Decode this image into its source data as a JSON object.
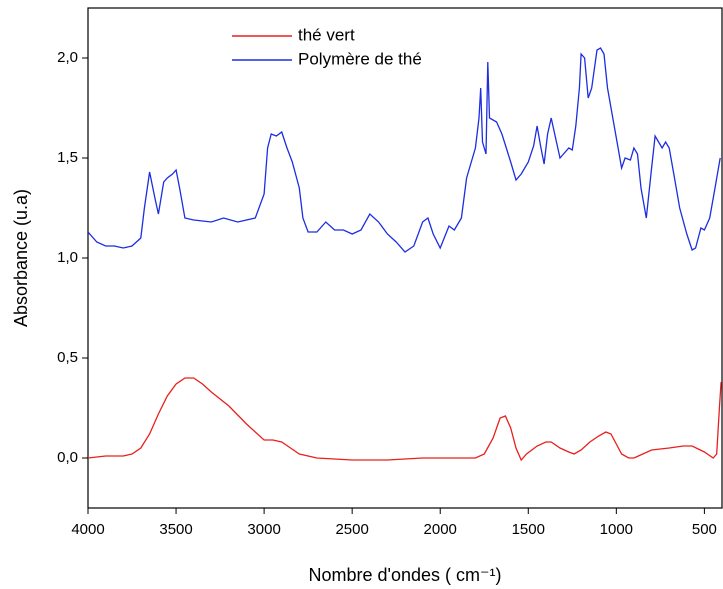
{
  "chart_data": {
    "type": "line",
    "x_label": "Nombre d'ondes ( cm⁻¹)",
    "y_label": "Absorbance (u.a)",
    "xlim": [
      4000,
      400
    ],
    "xticks": [
      4000,
      3500,
      3000,
      2500,
      2000,
      1500,
      1000,
      500
    ],
    "ylim": [
      -0.25,
      2.25
    ],
    "yticks": [
      {
        "value": 0.0,
        "label": "0,0"
      },
      {
        "value": 0.5,
        "label": "0,5"
      },
      {
        "value": 1.0,
        "label": "1,0"
      },
      {
        "value": 1.5,
        "label": "1,5"
      },
      {
        "value": 2.0,
        "label": "2,0"
      }
    ],
    "legend": "upper left",
    "series": [
      {
        "name": "thé vert",
        "color": "#e8201c",
        "x": [
          4000,
          3900,
          3800,
          3750,
          3700,
          3650,
          3600,
          3550,
          3500,
          3450,
          3400,
          3350,
          3300,
          3200,
          3100,
          3000,
          2950,
          2900,
          2850,
          2800,
          2700,
          2500,
          2300,
          2100,
          1900,
          1800,
          1750,
          1700,
          1660,
          1630,
          1600,
          1570,
          1540,
          1510,
          1450,
          1400,
          1370,
          1320,
          1270,
          1240,
          1200,
          1150,
          1100,
          1060,
          1030,
          1000,
          970,
          930,
          900,
          850,
          800,
          700,
          620,
          570,
          500,
          450,
          430,
          415,
          405
        ],
        "values": [
          0.0,
          0.01,
          0.01,
          0.02,
          0.05,
          0.12,
          0.22,
          0.31,
          0.37,
          0.4,
          0.4,
          0.37,
          0.33,
          0.26,
          0.17,
          0.09,
          0.09,
          0.08,
          0.05,
          0.02,
          0.0,
          -0.01,
          -0.01,
          0.0,
          0.0,
          0.0,
          0.02,
          0.1,
          0.2,
          0.21,
          0.15,
          0.05,
          -0.01,
          0.02,
          0.06,
          0.08,
          0.08,
          0.05,
          0.03,
          0.02,
          0.04,
          0.08,
          0.11,
          0.13,
          0.12,
          0.07,
          0.02,
          0.0,
          0.0,
          0.02,
          0.04,
          0.05,
          0.06,
          0.06,
          0.03,
          0.0,
          0.02,
          0.25,
          0.38
        ]
      },
      {
        "name": "Polymère de thé",
        "color": "#1c2ee0",
        "x": [
          4000,
          3950,
          3900,
          3850,
          3800,
          3750,
          3700,
          3680,
          3650,
          3620,
          3600,
          3570,
          3550,
          3520,
          3500,
          3480,
          3450,
          3400,
          3300,
          3230,
          3150,
          3050,
          3000,
          2980,
          2960,
          2930,
          2900,
          2870,
          2840,
          2800,
          2780,
          2750,
          2700,
          2650,
          2600,
          2550,
          2500,
          2450,
          2400,
          2350,
          2300,
          2250,
          2200,
          2150,
          2100,
          2070,
          2040,
          2000,
          1950,
          1920,
          1880,
          1850,
          1800,
          1780,
          1770,
          1760,
          1740,
          1730,
          1720,
          1680,
          1650,
          1600,
          1570,
          1540,
          1500,
          1470,
          1450,
          1430,
          1410,
          1390,
          1370,
          1350,
          1320,
          1300,
          1270,
          1250,
          1230,
          1210,
          1200,
          1180,
          1160,
          1140,
          1110,
          1090,
          1070,
          1050,
          1020,
          990,
          970,
          950,
          920,
          900,
          880,
          860,
          830,
          800,
          780,
          760,
          740,
          720,
          700,
          670,
          640,
          600,
          570,
          550,
          520,
          500,
          470,
          440,
          410
        ],
        "values": [
          1.13,
          1.08,
          1.06,
          1.06,
          1.05,
          1.06,
          1.1,
          1.25,
          1.43,
          1.3,
          1.22,
          1.38,
          1.4,
          1.42,
          1.44,
          1.35,
          1.2,
          1.19,
          1.18,
          1.2,
          1.18,
          1.2,
          1.32,
          1.55,
          1.62,
          1.61,
          1.63,
          1.55,
          1.48,
          1.35,
          1.2,
          1.13,
          1.13,
          1.18,
          1.14,
          1.14,
          1.12,
          1.14,
          1.22,
          1.18,
          1.12,
          1.08,
          1.03,
          1.06,
          1.18,
          1.2,
          1.12,
          1.05,
          1.16,
          1.14,
          1.2,
          1.4,
          1.55,
          1.7,
          1.85,
          1.58,
          1.52,
          1.98,
          1.7,
          1.68,
          1.62,
          1.48,
          1.39,
          1.42,
          1.48,
          1.56,
          1.66,
          1.56,
          1.47,
          1.62,
          1.7,
          1.62,
          1.5,
          1.52,
          1.55,
          1.54,
          1.66,
          1.85,
          2.02,
          2.0,
          1.8,
          1.85,
          2.04,
          2.05,
          2.02,
          1.85,
          1.7,
          1.55,
          1.45,
          1.5,
          1.49,
          1.55,
          1.52,
          1.35,
          1.2,
          1.45,
          1.61,
          1.58,
          1.55,
          1.58,
          1.55,
          1.4,
          1.25,
          1.12,
          1.04,
          1.05,
          1.15,
          1.14,
          1.2,
          1.35,
          1.5
        ]
      }
    ]
  }
}
